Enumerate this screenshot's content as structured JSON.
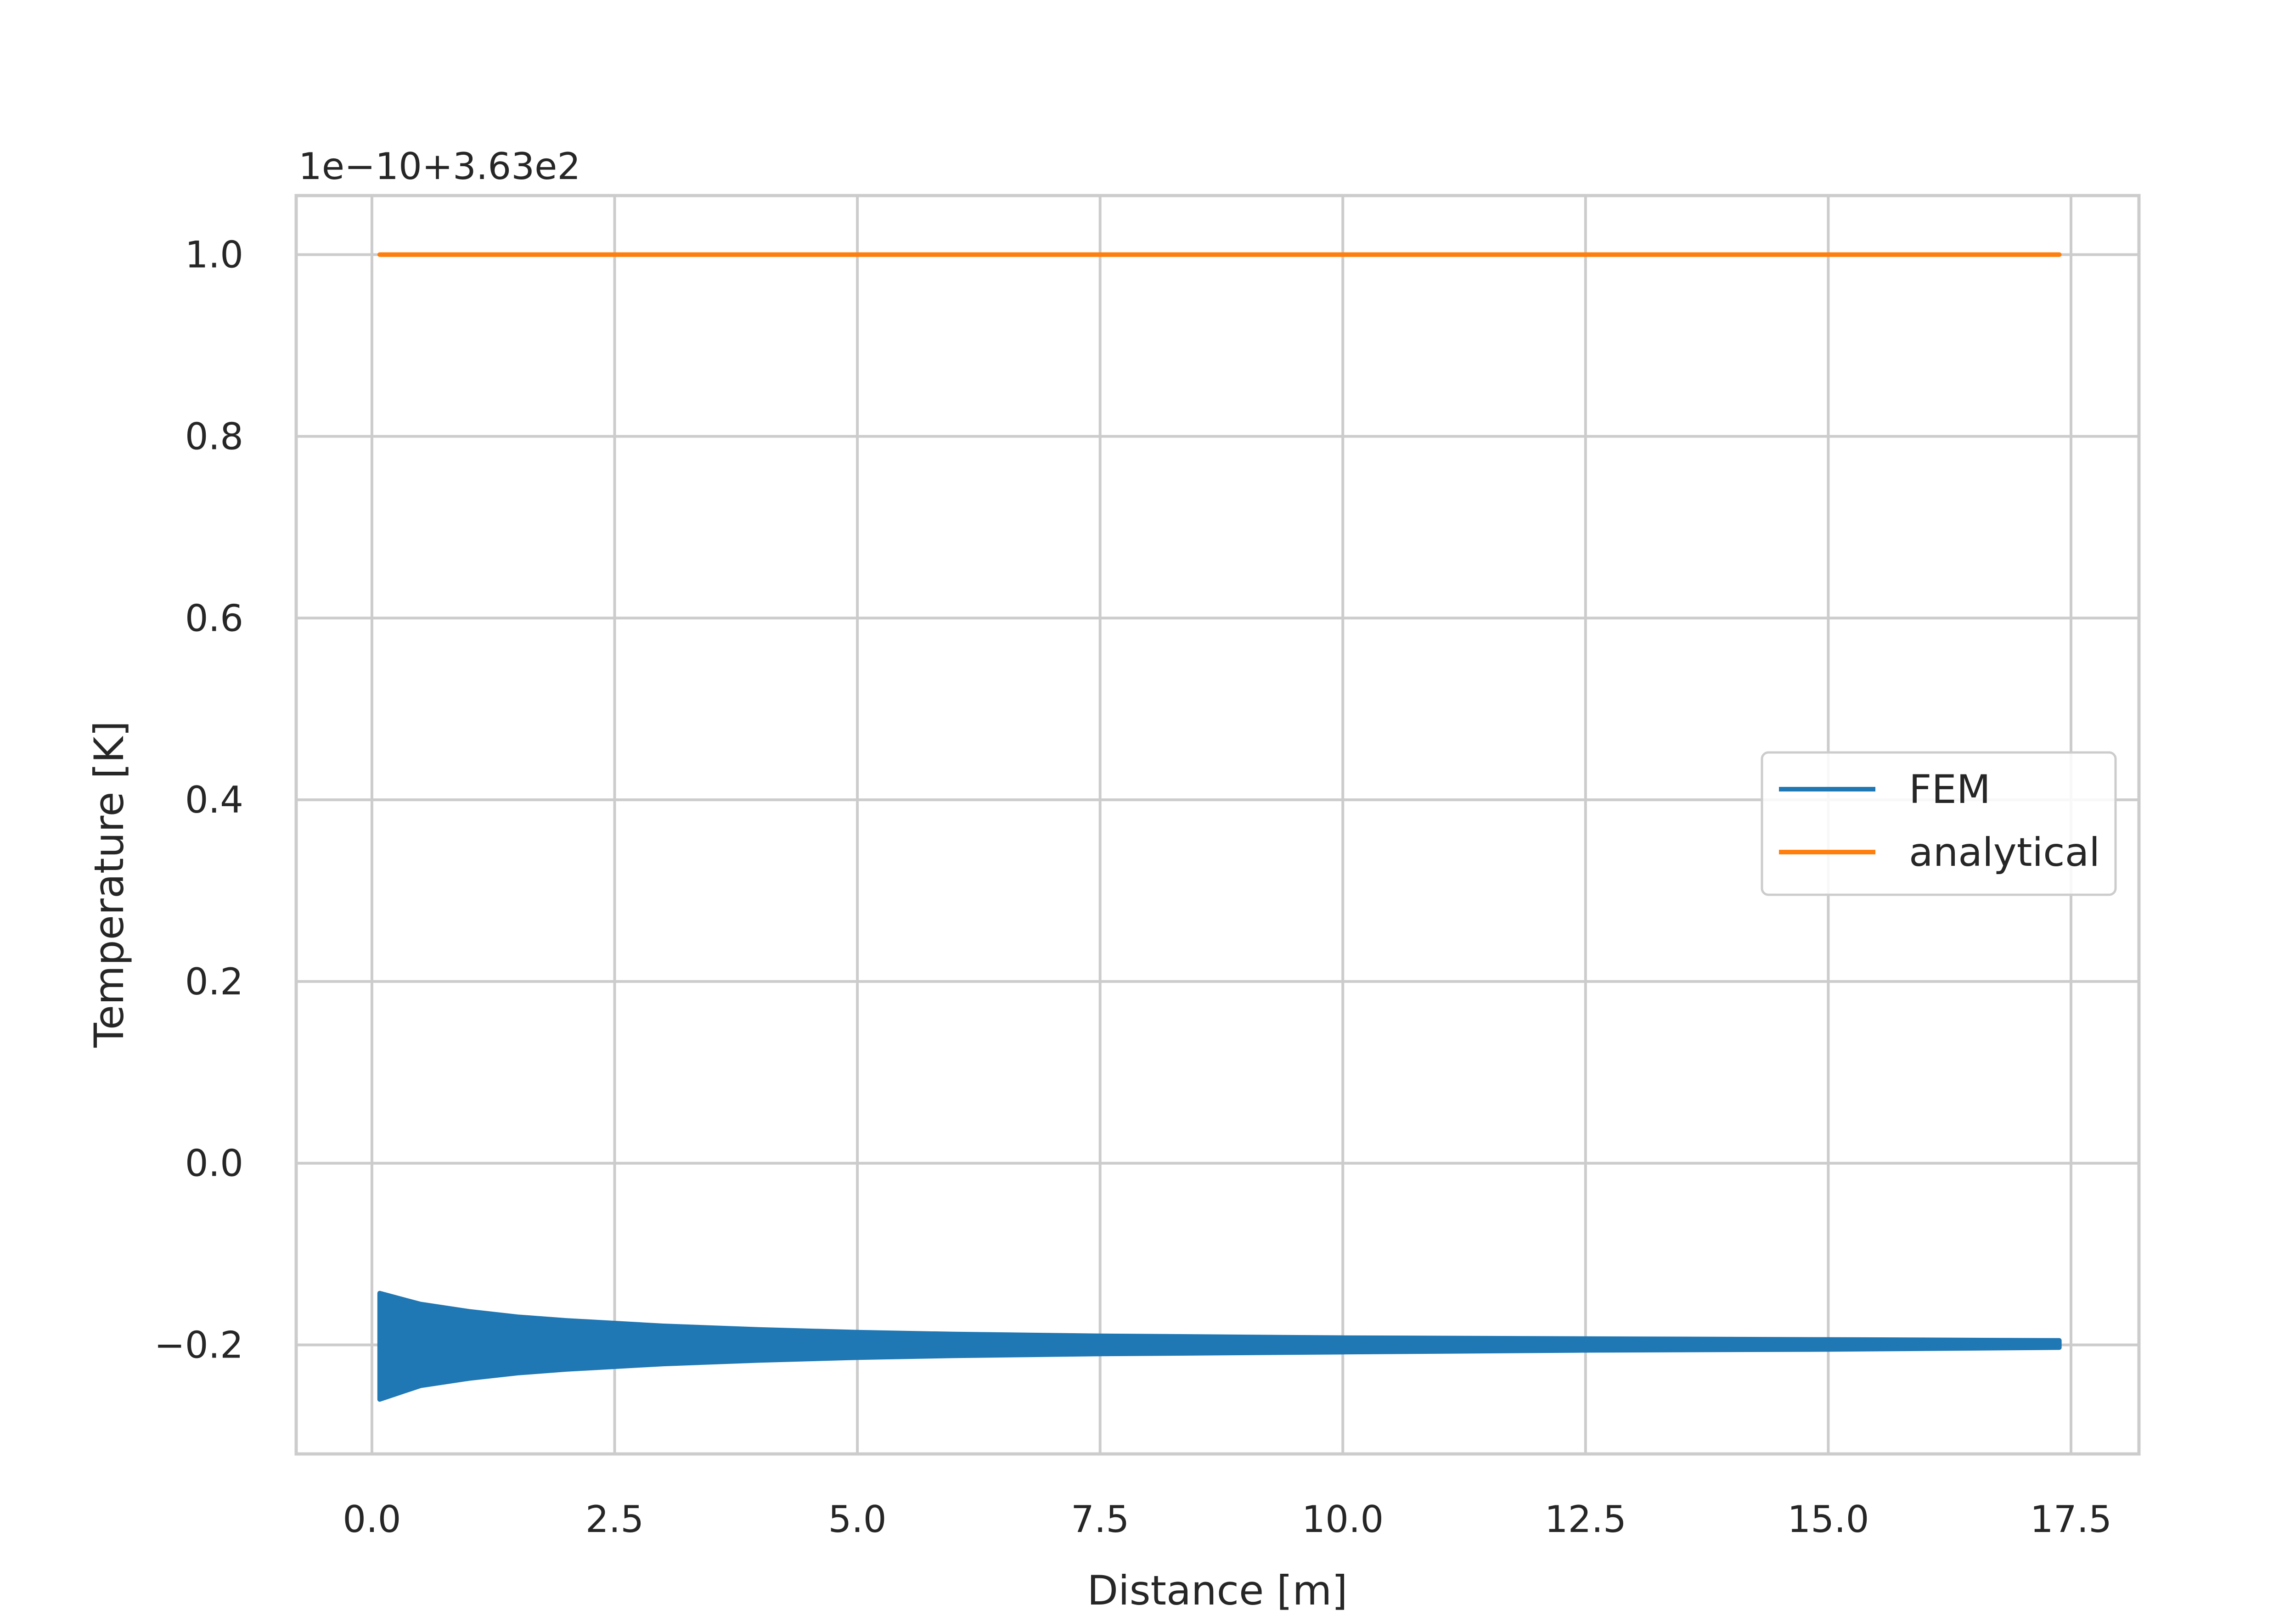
{
  "chart_data": {
    "type": "line",
    "xlabel": "Distance [m]",
    "ylabel": "Temperature [K]",
    "y_offset_label": "1e−10+3.63e2",
    "xlim": [
      -0.78,
      18.2
    ],
    "ylim": [
      -0.32,
      1.065
    ],
    "x_ticks": [
      0.0,
      2.5,
      5.0,
      7.5,
      10.0,
      12.5,
      15.0,
      17.5
    ],
    "x_tick_labels": [
      "0.0",
      "2.5",
      "5.0",
      "7.5",
      "10.0",
      "12.5",
      "15.0",
      "17.5"
    ],
    "y_ticks": [
      -0.2,
      0.0,
      0.2,
      0.4,
      0.6,
      0.8,
      1.0
    ],
    "y_tick_labels": [
      "−0.2",
      "0.0",
      "0.2",
      "0.4",
      "0.6",
      "0.8",
      "1.0"
    ],
    "grid": true,
    "legend_position": "center-right",
    "series": [
      {
        "name": "FEM",
        "color": "#1f77b4",
        "x": [
          0.08,
          0.5,
          1.0,
          1.5,
          2.0,
          2.5,
          3.0,
          4.0,
          5.0,
          6.0,
          7.5,
          10.0,
          12.5,
          15.0,
          17.38
        ],
        "y_upper": [
          -0.143,
          -0.155,
          -0.163,
          -0.169,
          -0.173,
          -0.176,
          -0.179,
          -0.183,
          -0.186,
          -0.188,
          -0.19,
          -0.192,
          -0.193,
          -0.194,
          -0.195
        ],
        "y_lower": [
          -0.26,
          -0.245,
          -0.237,
          -0.231,
          -0.227,
          -0.224,
          -0.221,
          -0.217,
          -0.214,
          -0.212,
          -0.21,
          -0.208,
          -0.206,
          -0.205,
          -0.203
        ]
      },
      {
        "name": "analytical",
        "color": "#ff7f0e",
        "x": [
          0.08,
          17.38
        ],
        "y": [
          1.0,
          1.0
        ]
      }
    ]
  }
}
